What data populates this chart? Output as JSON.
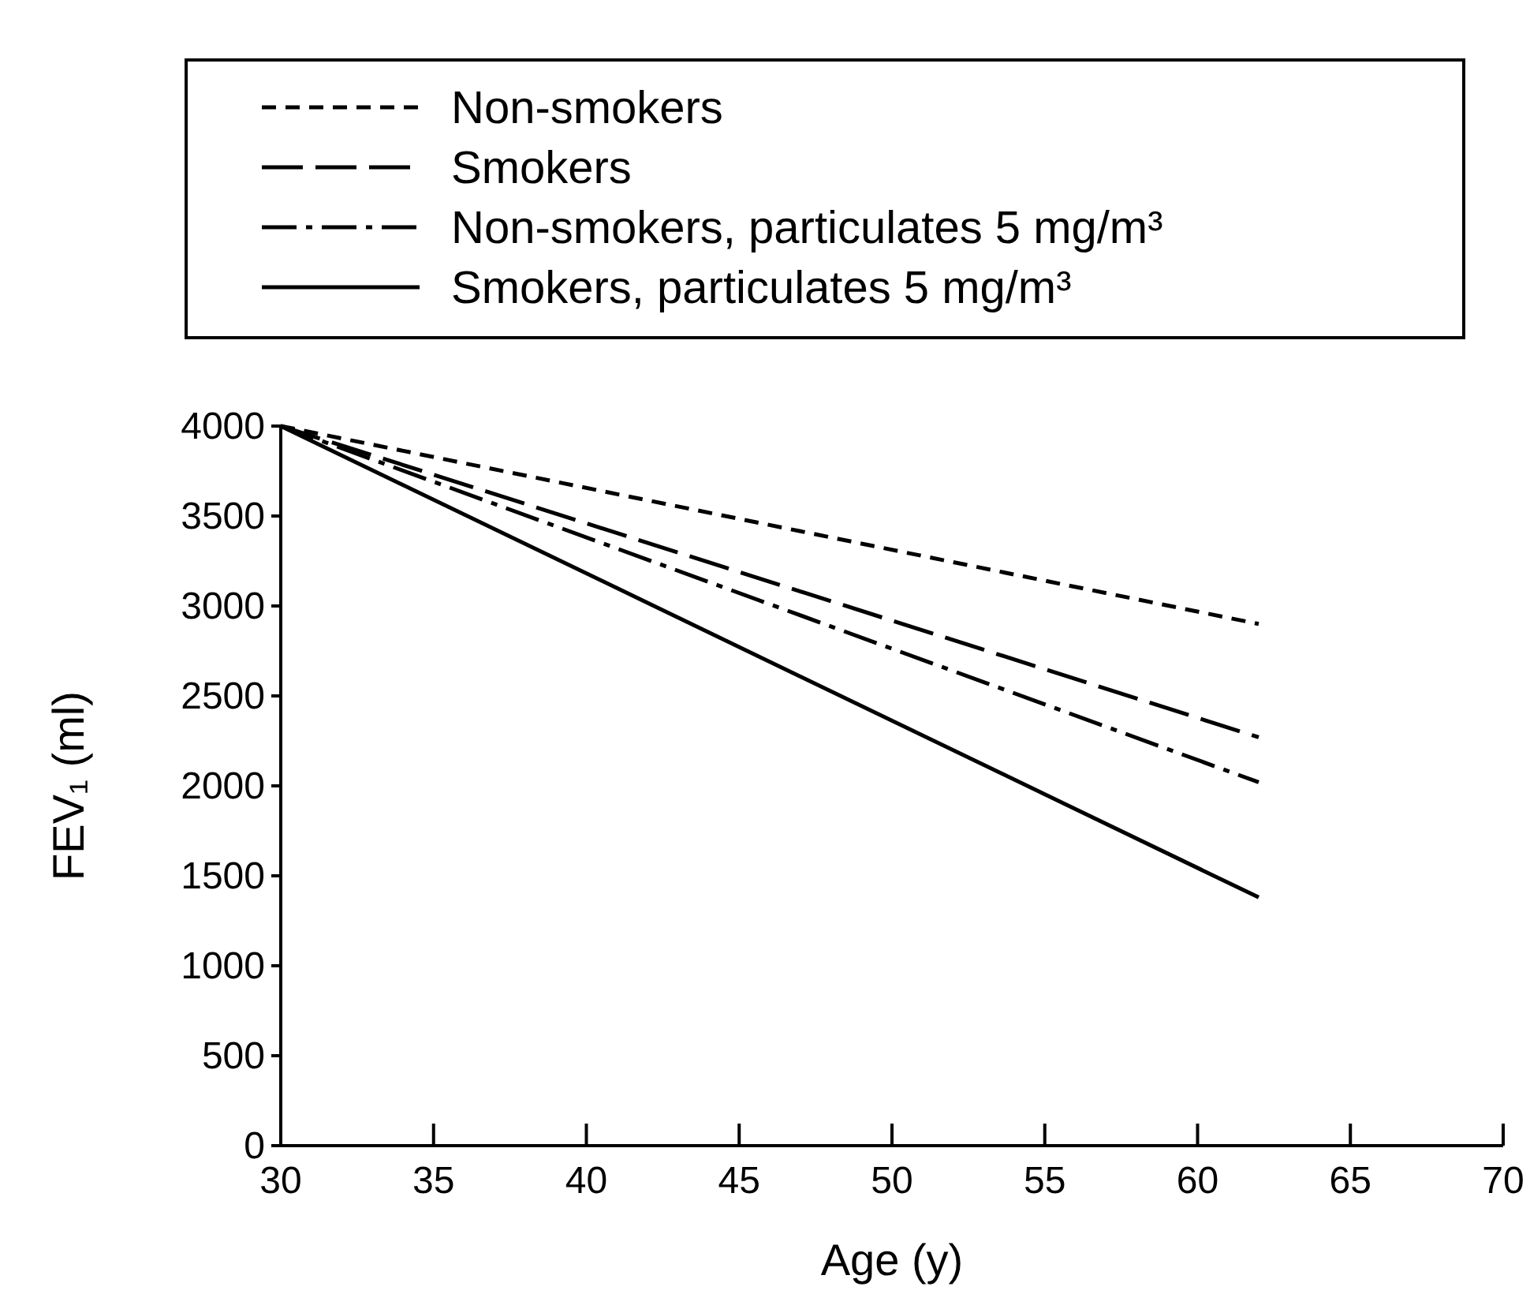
{
  "chart_data": {
    "type": "line",
    "xlabel": "Age (y)",
    "ylabel": "FEV₁ (ml)",
    "legend": "top",
    "xlim": [
      30,
      70
    ],
    "xticks": [
      30,
      35,
      40,
      45,
      50,
      55,
      60,
      65,
      70
    ],
    "ylim": [
      0,
      4000
    ],
    "yticks": [
      0,
      500,
      1000,
      1500,
      2000,
      2500,
      3000,
      3500,
      4000
    ],
    "grid": false,
    "x": [
      30,
      62
    ],
    "series": [
      {
        "name": "Non-smokers",
        "color": "#000000",
        "line_style": "dashed",
        "values": [
          4000,
          2900
        ]
      },
      {
        "name": "Smokers",
        "color": "#000000",
        "line_style": "longdash",
        "values": [
          4000,
          2270
        ]
      },
      {
        "name": "Non-smokers, particulates 5 mg/m³",
        "color": "#000000",
        "line_style": "dashdot",
        "values": [
          4000,
          2020
        ]
      },
      {
        "name": "Smokers, particulates 5 mg/m³",
        "color": "#000000",
        "line_style": "solid",
        "values": [
          4000,
          1380
        ]
      }
    ]
  }
}
